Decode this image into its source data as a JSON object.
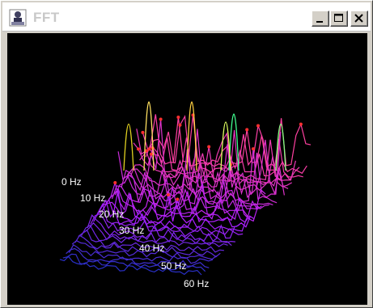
{
  "window": {
    "title": "FFT",
    "app_icon": "fft-app-icon",
    "controls": {
      "minimize": "minimize-icon",
      "maximize": "maximize-icon",
      "close": "close-icon"
    }
  },
  "colors": {
    "plot_background": "#000000",
    "trace_low": "#2a30c8",
    "trace_mid": "#b020ff",
    "trace_high": "#ff40a0",
    "peak_marker": "#ff3030"
  },
  "plot": {
    "freq_labels": [
      "0 Hz",
      "10 Hz",
      "20 Hz",
      "30 Hz",
      "40 Hz",
      "50 Hz",
      "60 Hz"
    ]
  }
}
